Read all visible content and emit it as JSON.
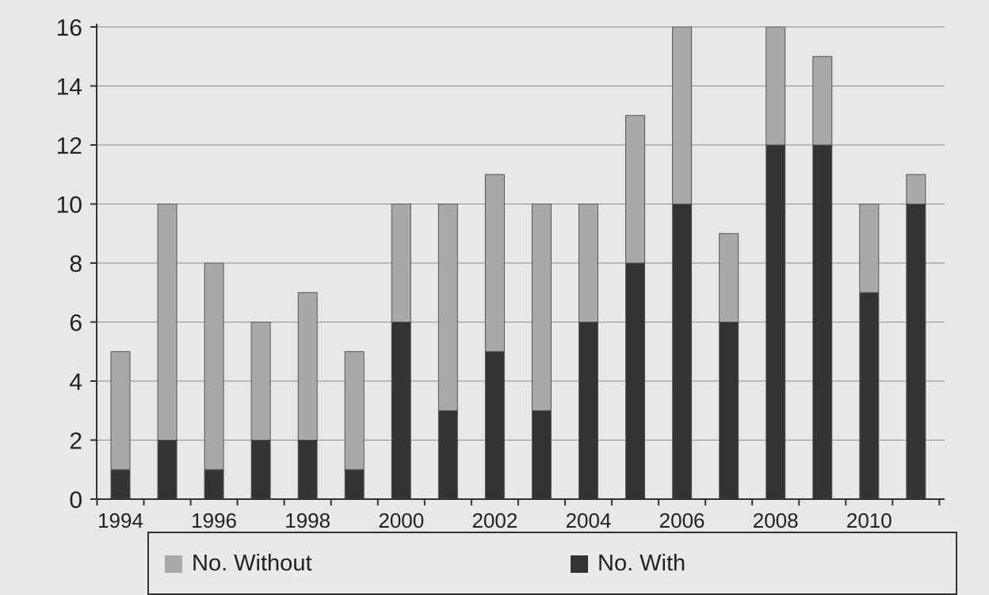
{
  "chart_data": {
    "type": "bar",
    "stacked": true,
    "categories": [
      "1994",
      "1995",
      "1996",
      "1997",
      "1998",
      "1999",
      "2000",
      "2001",
      "2002",
      "2003",
      "2004",
      "2005",
      "2006",
      "2007",
      "2008",
      "2009",
      "2010",
      "2011"
    ],
    "x_tick_labels": [
      "1994",
      "1996",
      "1998",
      "2000",
      "2002",
      "2004",
      "2006",
      "2008",
      "2010"
    ],
    "y_ticks": [
      "0",
      "2",
      "4",
      "6",
      "8",
      "10",
      "12",
      "14",
      "16"
    ],
    "ylim": [
      0,
      16
    ],
    "grid": true,
    "legend_position": "bottom",
    "title": "",
    "xlabel": "",
    "ylabel": "",
    "series": [
      {
        "name": "No. With",
        "color": "#333333",
        "values": [
          1,
          2,
          1,
          2,
          2,
          1,
          6,
          3,
          5,
          3,
          6,
          8,
          10,
          6,
          12,
          12,
          7,
          10
        ]
      },
      {
        "name": "No. Without",
        "color": "#a9a9a9",
        "values": [
          4,
          8,
          7,
          4,
          5,
          4,
          4,
          7,
          6,
          7,
          4,
          5,
          6,
          3,
          4,
          3,
          3,
          1
        ]
      }
    ]
  },
  "legend": {
    "without_label": "No. Without",
    "with_label": "No. With"
  }
}
